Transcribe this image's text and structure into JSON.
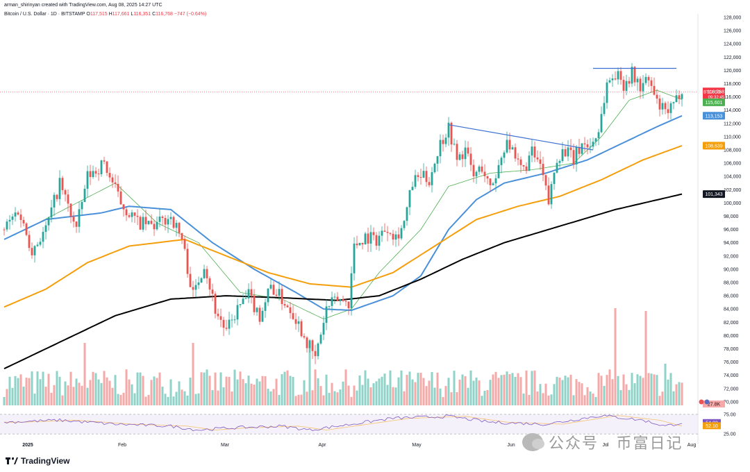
{
  "header": {
    "credit": "arman_shirinyan created with TradingView.com, Aug 08, 2025 14:27 UTC",
    "symbol": "Bitcoin / U.S. Dollar · 1D · BITSTAMP",
    "ohlc": {
      "O": "117,515",
      "H": "117,661",
      "L": "116,351",
      "C": "116,768",
      "chg": "−747 (−0.64%)"
    }
  },
  "footer": {
    "logo": "TradingView",
    "watermark": "公众号 · 币富日记"
  },
  "colors": {
    "up": "#26a69a",
    "down": "#ef5350",
    "ma20": "#4caf50",
    "ma50": "#4a90d9",
    "ma100": "#f59e0b",
    "ma200": "#000000",
    "rsi": "#7e57c2"
  },
  "chart_data": {
    "type": "candlestick",
    "title": "Bitcoin / U.S. Dollar · 1D · BITSTAMP",
    "x_labels": [
      "2025",
      "Feb",
      "Mar",
      "Apr",
      "May",
      "Jun",
      "Jul",
      "Aug"
    ],
    "y_ticks": [
      "70,000",
      "72,000",
      "74,000",
      "76,000",
      "78,000",
      "80,000",
      "82,000",
      "84,000",
      "86,000",
      "88,000",
      "90,000",
      "92,000",
      "94,000",
      "96,000",
      "98,000",
      "100,000",
      "102,000",
      "104,000",
      "106,000",
      "108,000",
      "110,000",
      "112,000",
      "114,000",
      "116,000",
      "118,000",
      "120,000",
      "122,000",
      "124,000",
      "126,000",
      "128,000"
    ],
    "ylim": [
      69000,
      129000
    ],
    "price_points": [
      {
        "t": 0,
        "p": 96000
      },
      {
        "t": 5,
        "p": 99000
      },
      {
        "t": 10,
        "p": 93000
      },
      {
        "t": 15,
        "p": 96000
      },
      {
        "t": 20,
        "p": 103000
      },
      {
        "t": 26,
        "p": 96000
      },
      {
        "t": 30,
        "p": 104000
      },
      {
        "t": 36,
        "p": 106000
      },
      {
        "t": 42,
        "p": 100000
      },
      {
        "t": 48,
        "p": 97000
      },
      {
        "t": 54,
        "p": 96500
      },
      {
        "t": 60,
        "p": 98000
      },
      {
        "t": 64,
        "p": 94500
      },
      {
        "t": 68,
        "p": 86000
      },
      {
        "t": 72,
        "p": 91000
      },
      {
        "t": 76,
        "p": 84000
      },
      {
        "t": 80,
        "p": 80500
      },
      {
        "t": 84,
        "p": 84000
      },
      {
        "t": 88,
        "p": 86000
      },
      {
        "t": 92,
        "p": 83000
      },
      {
        "t": 96,
        "p": 87500
      },
      {
        "t": 100,
        "p": 85500
      },
      {
        "t": 104,
        "p": 83500
      },
      {
        "t": 108,
        "p": 80000
      },
      {
        "t": 112,
        "p": 76500
      },
      {
        "t": 116,
        "p": 84000
      },
      {
        "t": 120,
        "p": 85500
      },
      {
        "t": 124,
        "p": 85000
      },
      {
        "t": 126,
        "p": 93500
      },
      {
        "t": 130,
        "p": 95000
      },
      {
        "t": 134,
        "p": 94500
      },
      {
        "t": 138,
        "p": 96500
      },
      {
        "t": 141,
        "p": 95000
      },
      {
        "t": 144,
        "p": 97000
      },
      {
        "t": 147,
        "p": 103000
      },
      {
        "t": 150,
        "p": 104000
      },
      {
        "t": 153,
        "p": 103500
      },
      {
        "t": 157,
        "p": 109000
      },
      {
        "t": 160,
        "p": 111500
      },
      {
        "t": 163,
        "p": 106500
      },
      {
        "t": 166,
        "p": 108000
      },
      {
        "t": 169,
        "p": 104000
      },
      {
        "t": 172,
        "p": 105500
      },
      {
        "t": 175,
        "p": 102000
      },
      {
        "t": 178,
        "p": 105500
      },
      {
        "t": 181,
        "p": 110000
      },
      {
        "t": 184,
        "p": 106000
      },
      {
        "t": 187,
        "p": 105000
      },
      {
        "t": 190,
        "p": 107500
      },
      {
        "t": 193,
        "p": 105500
      },
      {
        "t": 196,
        "p": 100000
      },
      {
        "t": 199,
        "p": 107000
      },
      {
        "t": 202,
        "p": 108000
      },
      {
        "t": 205,
        "p": 106500
      },
      {
        "t": 208,
        "p": 109000
      },
      {
        "t": 211,
        "p": 108500
      },
      {
        "t": 214,
        "p": 111000
      },
      {
        "t": 217,
        "p": 118000
      },
      {
        "t": 220,
        "p": 119500
      },
      {
        "t": 223,
        "p": 118000
      },
      {
        "t": 226,
        "p": 119500
      },
      {
        "t": 229,
        "p": 117500
      },
      {
        "t": 232,
        "p": 118500
      },
      {
        "t": 235,
        "p": 115000
      },
      {
        "t": 238,
        "p": 113500
      },
      {
        "t": 241,
        "p": 114500
      },
      {
        "t": 244,
        "p": 117500
      }
    ],
    "series": [
      {
        "name": "MA20",
        "color": "#4caf50",
        "points": [
          {
            "t": 10,
            "p": 96500
          },
          {
            "t": 40,
            "p": 103000
          },
          {
            "t": 55,
            "p": 97000
          },
          {
            "t": 70,
            "p": 94000
          },
          {
            "t": 85,
            "p": 86500
          },
          {
            "t": 100,
            "p": 85500
          },
          {
            "t": 115,
            "p": 82500
          },
          {
            "t": 125,
            "p": 84000
          },
          {
            "t": 135,
            "p": 89500
          },
          {
            "t": 150,
            "p": 96000
          },
          {
            "t": 160,
            "p": 102500
          },
          {
            "t": 175,
            "p": 104500
          },
          {
            "t": 190,
            "p": 105000
          },
          {
            "t": 205,
            "p": 106000
          },
          {
            "t": 215,
            "p": 110000
          },
          {
            "t": 225,
            "p": 115500
          },
          {
            "t": 235,
            "p": 117000
          },
          {
            "t": 244,
            "p": 115600
          }
        ]
      },
      {
        "name": "MA50",
        "color": "#4a90d9",
        "values_label": "113,153",
        "points": [
          {
            "t": 0,
            "p": 94500
          },
          {
            "t": 15,
            "p": 97500
          },
          {
            "t": 35,
            "p": 98500
          },
          {
            "t": 45,
            "p": 99500
          },
          {
            "t": 60,
            "p": 99000
          },
          {
            "t": 75,
            "p": 94000
          },
          {
            "t": 90,
            "p": 90000
          },
          {
            "t": 105,
            "p": 86500
          },
          {
            "t": 115,
            "p": 84000
          },
          {
            "t": 125,
            "p": 83800
          },
          {
            "t": 140,
            "p": 86000
          },
          {
            "t": 150,
            "p": 89000
          },
          {
            "t": 160,
            "p": 96000
          },
          {
            "t": 170,
            "p": 100500
          },
          {
            "t": 180,
            "p": 103000
          },
          {
            "t": 195,
            "p": 104500
          },
          {
            "t": 210,
            "p": 106500
          },
          {
            "t": 220,
            "p": 108500
          },
          {
            "t": 235,
            "p": 111500
          },
          {
            "t": 244,
            "p": 113150
          }
        ]
      },
      {
        "name": "MA100",
        "color": "#f59e0b",
        "values_label": "108,639",
        "points": [
          {
            "t": 0,
            "p": 84300
          },
          {
            "t": 15,
            "p": 87000
          },
          {
            "t": 30,
            "p": 91000
          },
          {
            "t": 45,
            "p": 93500
          },
          {
            "t": 65,
            "p": 94500
          },
          {
            "t": 80,
            "p": 92000
          },
          {
            "t": 95,
            "p": 89500
          },
          {
            "t": 110,
            "p": 87800
          },
          {
            "t": 125,
            "p": 87300
          },
          {
            "t": 140,
            "p": 89500
          },
          {
            "t": 155,
            "p": 93500
          },
          {
            "t": 170,
            "p": 97500
          },
          {
            "t": 185,
            "p": 99500
          },
          {
            "t": 200,
            "p": 101000
          },
          {
            "t": 215,
            "p": 103500
          },
          {
            "t": 230,
            "p": 106500
          },
          {
            "t": 244,
            "p": 108640
          }
        ]
      },
      {
        "name": "MA200",
        "color": "#000000",
        "values_label": "101,343",
        "points": [
          {
            "t": 0,
            "p": 75000
          },
          {
            "t": 20,
            "p": 79000
          },
          {
            "t": 40,
            "p": 83000
          },
          {
            "t": 60,
            "p": 85500
          },
          {
            "t": 80,
            "p": 86000
          },
          {
            "t": 100,
            "p": 85700
          },
          {
            "t": 120,
            "p": 85300
          },
          {
            "t": 135,
            "p": 86000
          },
          {
            "t": 150,
            "p": 88500
          },
          {
            "t": 165,
            "p": 91500
          },
          {
            "t": 180,
            "p": 94000
          },
          {
            "t": 200,
            "p": 96500
          },
          {
            "t": 220,
            "p": 99000
          },
          {
            "t": 244,
            "p": 101340
          }
        ]
      }
    ],
    "trendlines": [
      {
        "name": "descending-resistance",
        "from": {
          "t": 160,
          "p": 111800
        },
        "to": {
          "t": 212,
          "p": 108000
        }
      },
      {
        "name": "range-top",
        "from": {
          "t": 212,
          "p": 120300
        },
        "to": {
          "t": 242,
          "p": 120300
        }
      }
    ],
    "price_labels": [
      {
        "name": "BTCUSD",
        "text": "116,768",
        "sub": "09:32:45",
        "color": "#f23645"
      },
      {
        "name": "ma20",
        "text": "115,601",
        "color": "#4caf50"
      },
      {
        "name": "ma50",
        "text": "113,153",
        "color": "#4a90d9"
      },
      {
        "name": "ma100",
        "text": "108,639",
        "color": "#f59e0b"
      },
      {
        "name": "ma200",
        "text": "101,343",
        "color": "#131722"
      }
    ],
    "volume_label": "27.8K",
    "rsi": {
      "ticks": [
        "75.00",
        "25.00"
      ],
      "labels": [
        {
          "text": "54.02",
          "color": "#7e57c2"
        },
        {
          "text": "52.10",
          "color": "#f59e0b"
        }
      ],
      "points": [
        {
          "t": 0,
          "p": 55
        },
        {
          "t": 20,
          "p": 60
        },
        {
          "t": 40,
          "p": 50
        },
        {
          "t": 60,
          "p": 45
        },
        {
          "t": 70,
          "p": 35
        },
        {
          "t": 80,
          "p": 40
        },
        {
          "t": 100,
          "p": 45
        },
        {
          "t": 110,
          "p": 35
        },
        {
          "t": 125,
          "p": 50
        },
        {
          "t": 140,
          "p": 65
        },
        {
          "t": 160,
          "p": 70
        },
        {
          "t": 175,
          "p": 55
        },
        {
          "t": 195,
          "p": 50
        },
        {
          "t": 215,
          "p": 72
        },
        {
          "t": 230,
          "p": 60
        },
        {
          "t": 238,
          "p": 45
        },
        {
          "t": 244,
          "p": 54
        }
      ]
    }
  }
}
